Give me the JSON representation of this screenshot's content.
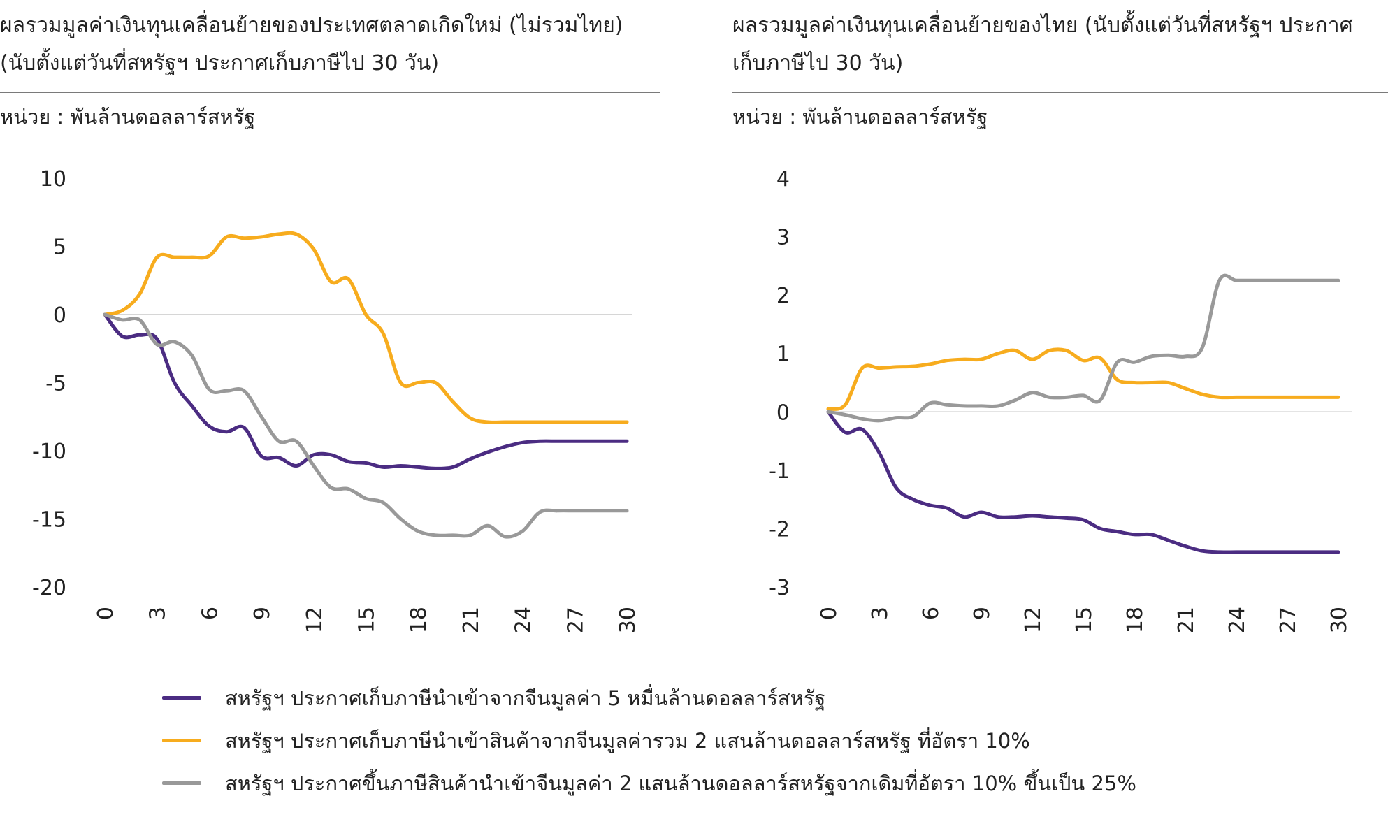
{
  "left_panel": {
    "title_line1": "ผลรวมมูลค่าเงินทุนเคลื่อนย้ายของประเทศตลาดเกิดใหม่  (ไม่รวมไทย)",
    "title_line2": "(นับตั้งแต่วันที่สหรัฐฯ ประกาศเก็บภาษีไป 30 วัน)",
    "unit": "หน่วย : พันล้านดอลลาร์สหรัฐ"
  },
  "right_panel": {
    "title_line1": "ผลรวมมูลค่าเงินทุนเคลื่อนย้ายของไทย (นับตั้งแต่วันที่สหรัฐฯ ประกาศ",
    "title_line2": "เก็บภาษีไป 30 วัน)",
    "unit": "หน่วย : พันล้านดอลลาร์สหรัฐ"
  },
  "legend": [
    {
      "label": "สหรัฐฯ ประกาศเก็บภาษีนำเข้าจากจีนมูลค่า 5 หมื่นล้านดอลลาร์สหรัฐ",
      "color": "#4b2c82"
    },
    {
      "label": "สหรัฐฯ ประกาศเก็บภาษีนำเข้าสินค้าจากจีนมูลค่ารวม 2 แสนล้านดอลลาร์สหรัฐ  ที่อัตรา 10%",
      "color": "#f7ac1e"
    },
    {
      "label": "สหรัฐฯ ประกาศขึ้นภาษีสินค้านำเข้าจีนมูลค่า 2 แสนล้านดอลลาร์สหรัฐจากเดิมที่อัตรา 10% ขึ้นเป็น 25%",
      "color": "#999999"
    }
  ],
  "chart_data": [
    {
      "type": "line",
      "x": [
        0,
        1,
        2,
        3,
        4,
        5,
        6,
        7,
        8,
        9,
        10,
        11,
        12,
        13,
        14,
        15,
        16,
        17,
        18,
        19,
        20,
        21,
        22,
        23,
        24,
        25,
        26,
        27,
        28,
        29,
        30
      ],
      "xticks": [
        "0",
        "3",
        "6",
        "9",
        "12",
        "15",
        "18",
        "21",
        "24",
        "27",
        "30"
      ],
      "yticks": [
        "10",
        "5",
        "0",
        "-5",
        "-10",
        "-15",
        "-20"
      ],
      "ylim": [
        -20,
        10
      ],
      "series": [
        {
          "color": "#4b2c82",
          "values": [
            0,
            -1.6,
            -1.5,
            -1.8,
            -5,
            -6.7,
            -8.2,
            -8.6,
            -8.3,
            -10.4,
            -10.5,
            -11.1,
            -10.3,
            -10.3,
            -10.8,
            -10.9,
            -11.2,
            -11.1,
            -11.2,
            -11.3,
            -11.2,
            -10.6,
            -10.1,
            -9.7,
            -9.4,
            -9.3,
            -9.3,
            -9.3,
            -9.3,
            -9.3,
            -9.3
          ]
        },
        {
          "color": "#f7ac1e",
          "values": [
            0,
            0.3,
            1.5,
            4.2,
            4.2,
            4.2,
            4.3,
            5.7,
            5.6,
            5.7,
            5.9,
            5.9,
            4.8,
            2.4,
            2.6,
            0,
            -1.4,
            -5,
            -5,
            -5,
            -6.4,
            -7.6,
            -7.9,
            -7.9,
            -7.9,
            -7.9,
            -7.9,
            -7.9,
            -7.9,
            -7.9,
            -7.9
          ]
        },
        {
          "color": "#999999",
          "values": [
            0,
            -0.4,
            -0.4,
            -2.2,
            -2,
            -3,
            -5.5,
            -5.6,
            -5.6,
            -7.5,
            -9.3,
            -9.3,
            -11.1,
            -12.7,
            -12.8,
            -13.5,
            -13.8,
            -15,
            -15.9,
            -16.2,
            -16.2,
            -16.2,
            -15.5,
            -16.3,
            -15.9,
            -14.5,
            -14.4,
            -14.4,
            -14.4,
            -14.4,
            -14.4
          ]
        }
      ]
    },
    {
      "type": "line",
      "x": [
        0,
        1,
        2,
        3,
        4,
        5,
        6,
        7,
        8,
        9,
        10,
        11,
        12,
        13,
        14,
        15,
        16,
        17,
        18,
        19,
        20,
        21,
        22,
        23,
        24,
        25,
        26,
        27,
        28,
        29,
        30
      ],
      "xticks": [
        "0",
        "3",
        "6",
        "9",
        "12",
        "15",
        "18",
        "21",
        "24",
        "27",
        "30"
      ],
      "yticks": [
        "4",
        "3",
        "2",
        "1",
        "0",
        "-1",
        "-2",
        "-3"
      ],
      "ylim": [
        -3,
        4
      ],
      "series": [
        {
          "color": "#4b2c82",
          "values": [
            0,
            -0.35,
            -0.3,
            -0.7,
            -1.3,
            -1.5,
            -1.6,
            -1.65,
            -1.8,
            -1.72,
            -1.8,
            -1.8,
            -1.78,
            -1.8,
            -1.82,
            -1.85,
            -2.0,
            -2.05,
            -2.1,
            -2.1,
            -2.2,
            -2.3,
            -2.38,
            -2.4,
            -2.4,
            -2.4,
            -2.4,
            -2.4,
            -2.4,
            -2.4,
            -2.4
          ]
        },
        {
          "color": "#f7ac1e",
          "values": [
            0.05,
            0.12,
            0.75,
            0.75,
            0.77,
            0.78,
            0.82,
            0.88,
            0.9,
            0.9,
            1.0,
            1.05,
            0.9,
            1.05,
            1.05,
            0.88,
            0.92,
            0.55,
            0.5,
            0.5,
            0.5,
            0.4,
            0.3,
            0.25,
            0.25,
            0.25,
            0.25,
            0.25,
            0.25,
            0.25,
            0.25
          ]
        },
        {
          "color": "#999999",
          "values": [
            0,
            -0.05,
            -0.12,
            -0.15,
            -0.1,
            -0.08,
            0.15,
            0.12,
            0.1,
            0.1,
            0.1,
            0.2,
            0.33,
            0.25,
            0.25,
            0.28,
            0.2,
            0.85,
            0.85,
            0.95,
            0.97,
            0.95,
            1.1,
            2.25,
            2.25,
            2.25,
            2.25,
            2.25,
            2.25,
            2.25,
            2.25
          ]
        }
      ]
    }
  ]
}
